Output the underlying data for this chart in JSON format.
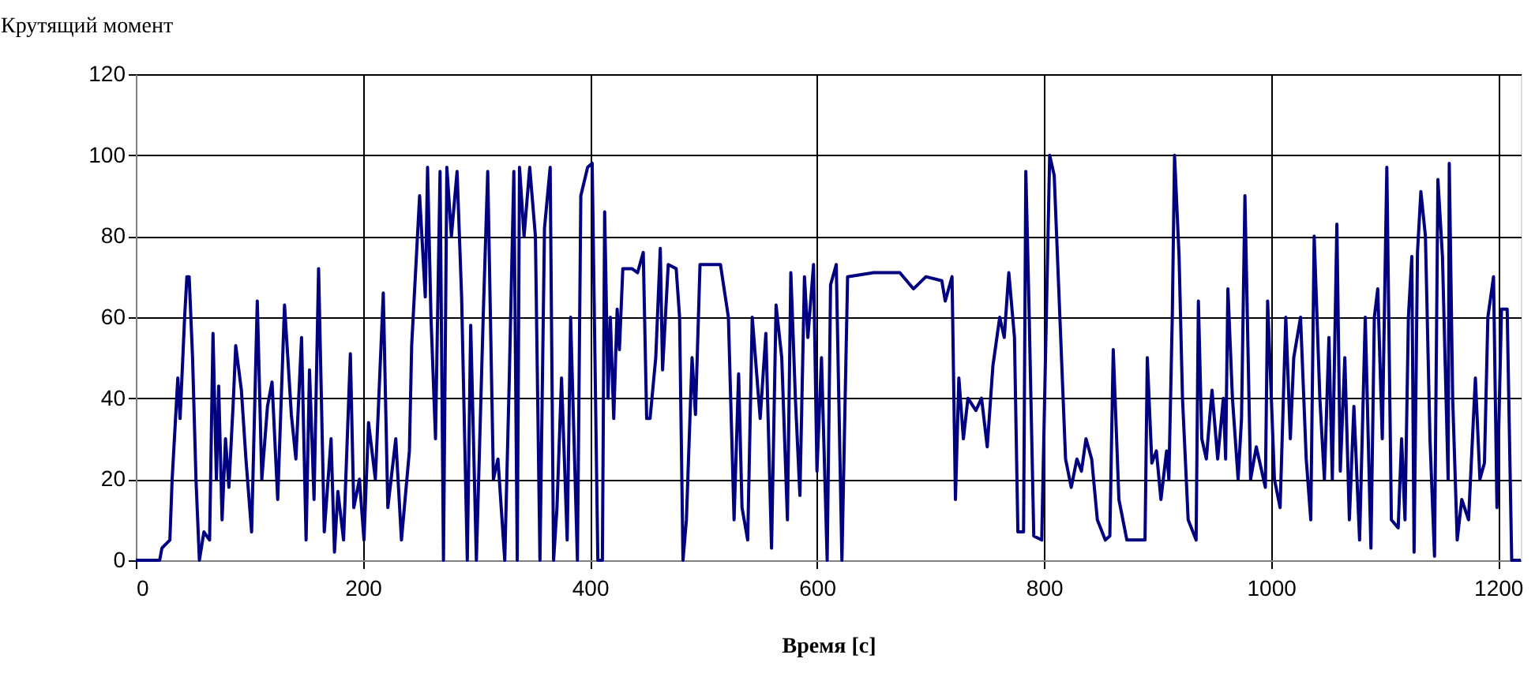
{
  "chart_data": {
    "type": "line",
    "xlabel": "Время [с]",
    "ylabel": "Крутящий момент",
    "x": [
      0,
      21,
      23,
      30,
      32,
      37,
      39,
      43,
      45,
      47,
      50,
      53,
      56,
      60,
      65,
      68,
      71,
      73,
      76,
      79,
      82,
      86,
      88,
      93,
      97,
      102,
      107,
      111,
      116,
      120,
      125,
      131,
      137,
      141,
      146,
      150,
      153,
      157,
      161,
      166,
      172,
      175,
      178,
      183,
      189,
      192,
      197,
      201,
      205,
      211,
      218,
      222,
      229,
      234,
      241,
      243,
      250,
      255,
      257,
      260,
      264,
      268,
      271,
      274,
      278,
      283,
      287,
      292,
      295,
      300,
      306,
      310,
      315,
      319,
      325,
      329,
      333,
      336,
      338,
      342,
      347,
      352,
      356,
      360,
      365,
      368,
      371,
      375,
      380,
      383,
      389,
      392,
      398,
      402,
      407,
      411,
      413,
      416,
      418,
      421,
      424,
      426,
      429,
      437,
      442,
      447,
      450,
      453,
      458,
      462,
      464,
      469,
      476,
      479,
      482,
      485,
      490,
      493,
      497,
      515,
      522,
      527,
      531,
      534,
      539,
      543,
      550,
      555,
      560,
      564,
      569,
      574,
      577,
      581,
      585,
      589,
      592,
      597,
      600,
      604,
      609,
      612,
      617,
      622,
      627,
      650,
      673,
      685,
      696,
      710,
      713,
      719,
      722,
      725,
      729,
      733,
      740,
      745,
      750,
      755,
      761,
      765,
      769,
      774,
      777,
      782,
      784,
      787,
      791,
      798,
      805,
      809,
      814,
      819,
      824,
      829,
      833,
      837,
      842,
      847,
      854,
      858,
      861,
      866,
      873,
      880,
      889,
      891,
      895,
      899,
      903,
      908,
      910,
      913,
      915,
      919,
      922,
      927,
      934,
      936,
      939,
      943,
      948,
      953,
      958,
      960,
      962,
      966,
      971,
      974,
      977,
      982,
      987,
      995,
      997,
      1003,
      1008,
      1013,
      1017,
      1020,
      1026,
      1031,
      1035,
      1038,
      1043,
      1047,
      1051,
      1054,
      1058,
      1061,
      1065,
      1069,
      1073,
      1078,
      1083,
      1088,
      1091,
      1094,
      1098,
      1102,
      1106,
      1112,
      1115,
      1118,
      1121,
      1124,
      1126,
      1129,
      1132,
      1136,
      1140,
      1144,
      1147,
      1151,
      1156,
      1157,
      1160,
      1164,
      1168,
      1174,
      1180,
      1184,
      1188,
      1191,
      1196,
      1199,
      1203,
      1208,
      1212,
      1220
    ],
    "series": [
      {
        "color": "#000080",
        "values": [
          0,
          0,
          3,
          5,
          20,
          45,
          35,
          60,
          70,
          70,
          50,
          20,
          0,
          7,
          5,
          56,
          20,
          43,
          10,
          30,
          18,
          40,
          53,
          42,
          25,
          7,
          64,
          20,
          38,
          44,
          15,
          63,
          36,
          25,
          55,
          5,
          47,
          15,
          72,
          7,
          30,
          2,
          17,
          5,
          51,
          13,
          20,
          5,
          34,
          20,
          66,
          13,
          30,
          5,
          27,
          53,
          90,
          65,
          97,
          60,
          30,
          96,
          0,
          97,
          80,
          96,
          65,
          0,
          58,
          0,
          60,
          96,
          20,
          25,
          0,
          45,
          96,
          0,
          97,
          80,
          97,
          80,
          0,
          82,
          97,
          0,
          13,
          45,
          5,
          60,
          0,
          90,
          97,
          98,
          0,
          0,
          86,
          40,
          60,
          35,
          62,
          52,
          72,
          72,
          71,
          76,
          35,
          35,
          50,
          77,
          47,
          73,
          72,
          60,
          0,
          10,
          50,
          36,
          73,
          73,
          60,
          10,
          46,
          13,
          5,
          60,
          35,
          56,
          3,
          63,
          50,
          10,
          71,
          40,
          16,
          70,
          55,
          73,
          22,
          50,
          0,
          68,
          73,
          0,
          70,
          71,
          71,
          67,
          70,
          69,
          64,
          70,
          15,
          45,
          30,
          40,
          37,
          40,
          28,
          48,
          60,
          55,
          71,
          55,
          7,
          7,
          96,
          60,
          6,
          5,
          100,
          95,
          60,
          25,
          18,
          25,
          22,
          30,
          25,
          10,
          5,
          6,
          52,
          15,
          5,
          5,
          5,
          50,
          24,
          27,
          15,
          27,
          20,
          60,
          100,
          75,
          40,
          10,
          5,
          64,
          30,
          25,
          42,
          25,
          40,
          25,
          67,
          40,
          20,
          35,
          90,
          20,
          28,
          18,
          64,
          20,
          13,
          60,
          30,
          50,
          60,
          25,
          10,
          80,
          40,
          20,
          55,
          20,
          83,
          22,
          50,
          10,
          38,
          5,
          60,
          3,
          60,
          67,
          30,
          97,
          10,
          8,
          30,
          10,
          60,
          75,
          2,
          76,
          91,
          80,
          30,
          1,
          94,
          75,
          20,
          98,
          40,
          5,
          15,
          10,
          45,
          20,
          24,
          60,
          70,
          13,
          62,
          62,
          0,
          0
        ]
      }
    ],
    "xlim": [
      0,
      1220
    ],
    "xticks": [
      0,
      200,
      400,
      600,
      800,
      1000,
      1200
    ],
    "ylim": [
      0,
      120
    ],
    "yticks": [
      0,
      20,
      40,
      60,
      80,
      100,
      120
    ],
    "grid": true,
    "legend": false,
    "marker": "none",
    "line_style": "solid"
  }
}
